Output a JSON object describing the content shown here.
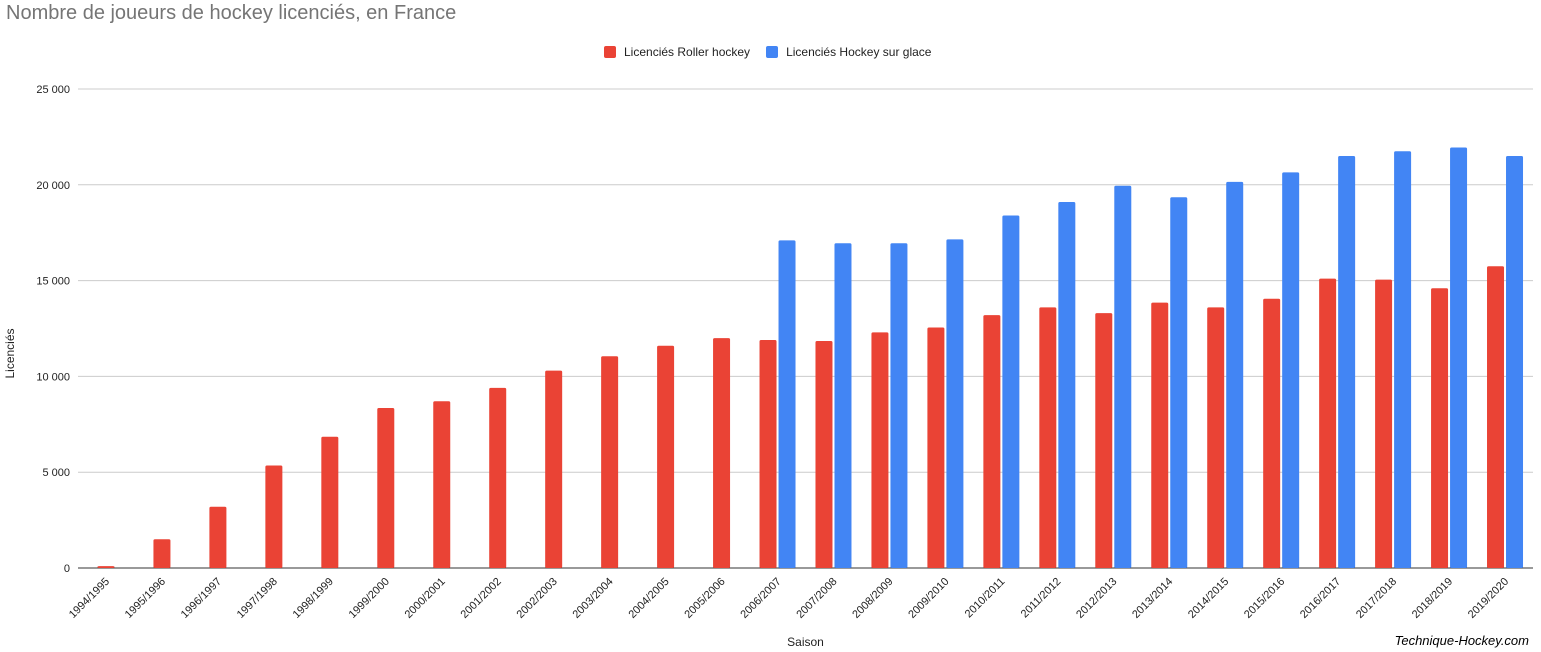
{
  "chart_data": {
    "type": "bar",
    "title": "Nombre de joueurs de hockey licenciés, en France",
    "xlabel": "Saison",
    "ylabel": "Licenciés",
    "ylim": [
      0,
      25000
    ],
    "yticks": [
      0,
      5000,
      10000,
      15000,
      20000,
      25000
    ],
    "ytick_labels": [
      "0",
      "5 000",
      "10 000",
      "15 000",
      "20 000",
      "25 000"
    ],
    "grid": true,
    "legend_position": "top-center",
    "credit": "Technique-Hockey.com",
    "categories": [
      "1994/1995",
      "1995/1996",
      "1996/1997",
      "1997/1998",
      "1998/1999",
      "1999/2000",
      "2000/2001",
      "2001/2002",
      "2002/2003",
      "2003/2004",
      "2004/2005",
      "2005/2006",
      "2006/2007",
      "2007/2008",
      "2008/2009",
      "2009/2010",
      "2010/2011",
      "2011/2012",
      "2012/2013",
      "2013/2014",
      "2014/2015",
      "2015/2016",
      "2016/2017",
      "2017/2018",
      "2018/2019",
      "2019/2020"
    ],
    "series": [
      {
        "name": "Licenciés Roller hockey",
        "color": "#ea4335",
        "values": [
          100,
          1500,
          3200,
          5350,
          6850,
          8350,
          8700,
          9400,
          10300,
          11050,
          11600,
          12000,
          11900,
          11850,
          12300,
          12550,
          13200,
          13600,
          13300,
          13850,
          13600,
          14050,
          15100,
          15050,
          14600,
          15750
        ]
      },
      {
        "name": "Licenciés Hockey sur glace",
        "color": "#4285f4",
        "values": [
          null,
          null,
          null,
          null,
          null,
          null,
          null,
          null,
          null,
          null,
          null,
          null,
          17100,
          16950,
          16950,
          17150,
          18400,
          19100,
          19950,
          19350,
          20150,
          20650,
          21500,
          21750,
          21950,
          21500
        ]
      }
    ]
  }
}
